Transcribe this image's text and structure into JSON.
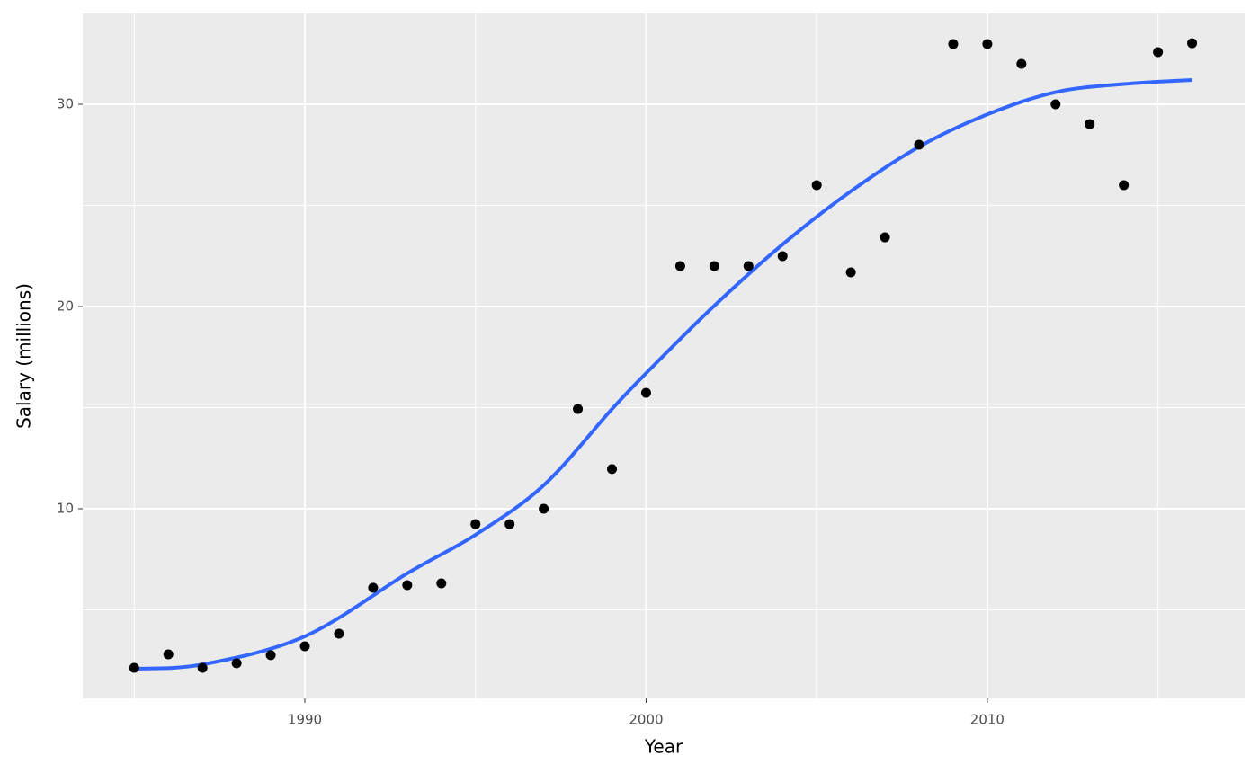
{
  "chart_data": {
    "type": "scatter",
    "x_label": "Year",
    "y_label": "Salary (millions)",
    "points": {
      "color": "#000000",
      "x": [
        1985,
        1986,
        1987,
        1988,
        1989,
        1990,
        1991,
        1992,
        1993,
        1994,
        1995,
        1996,
        1997,
        1998,
        1999,
        2000,
        2001,
        2002,
        2003,
        2004,
        2005,
        2006,
        2007,
        2008,
        2009,
        2010,
        2011,
        2012,
        2013,
        2014,
        2015,
        2016
      ],
      "values": [
        2.13,
        2.8,
        2.13,
        2.36,
        2.76,
        3.2,
        3.82,
        6.09,
        6.22,
        6.31,
        9.24,
        9.24,
        10,
        14.93,
        11.96,
        15.73,
        22,
        22,
        22,
        22.49,
        26,
        21.69,
        23.42,
        28,
        32.98,
        32.98,
        32,
        30,
        29.02,
        26,
        32.58,
        33.02
      ]
    },
    "smooth": {
      "color": "#3366ff",
      "x": [
        1985,
        1987,
        1990,
        1993,
        1995,
        1997,
        1999,
        2000,
        2002,
        2004,
        2006,
        2008,
        2010,
        2012,
        2014,
        2016
      ],
      "values": [
        2.09,
        2.3,
        3.69,
        6.8,
        8.71,
        11.16,
        14.93,
        16.7,
        20.04,
        23.07,
        25.7,
        27.9,
        29.5,
        30.6,
        31.0,
        31.2
      ]
    },
    "xlim": [
      1983.49,
      2017.54
    ],
    "ylim": [
      0.62,
      34.49
    ],
    "xticks": [
      1990,
      2000,
      2010
    ],
    "yticks": [
      10,
      20,
      30
    ],
    "grid": true
  }
}
